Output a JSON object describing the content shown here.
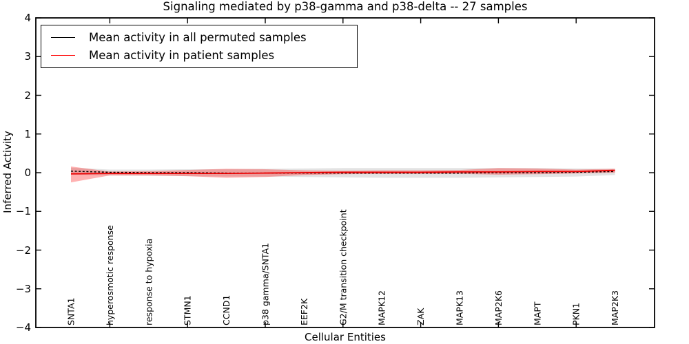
{
  "figure": {
    "title": "Signaling mediated by p38-gamma and p38-delta -- 27 samples",
    "xlabel": "Cellular Entities",
    "ylabel": "Inferred Activity",
    "background_color": "#ffffff",
    "frame_color": "#000000"
  },
  "legend": {
    "position": "upper left",
    "entries": [
      {
        "label": "Mean activity in all permuted samples",
        "color": "#000000",
        "line_style": "solid-sample"
      },
      {
        "label": "Mean activity in patient samples",
        "color": "#ff0000",
        "line_style": "solid-sample"
      }
    ]
  },
  "chart_data": {
    "type": "line",
    "title": "Signaling mediated by p38-gamma and p38-delta -- 27 samples",
    "xlabel": "Cellular Entities",
    "ylabel": "Inferred Activity",
    "ylim": [
      -4,
      4
    ],
    "yticks": [
      -4,
      -3,
      -2,
      -1,
      0,
      1,
      2,
      3,
      4
    ],
    "grid": false,
    "legend_position": "upper left",
    "categories": [
      "SNTA1",
      "hyperosmotic response",
      "response to hypoxia",
      "STMN1",
      "CCND1",
      "p38 gamma/SNTA1",
      "EEF2K",
      "G2/M transition checkpoint",
      "MAPK12",
      "ZAK",
      "MAPK13",
      "MAP2K6",
      "MAPT",
      "PKN1",
      "MAP2K3"
    ],
    "xtick_indices": [
      1,
      3,
      5,
      7,
      9,
      11,
      13
    ],
    "series": [
      {
        "name": "Mean activity in all permuted samples",
        "color": "#000000",
        "style": "dashed",
        "values": [
          0.04,
          0.01,
          0.0,
          0.0,
          -0.01,
          -0.01,
          -0.01,
          -0.01,
          -0.01,
          -0.01,
          -0.01,
          0.0,
          0.0,
          0.01,
          0.03
        ],
        "band_upper": [
          0.13,
          0.08,
          0.08,
          0.09,
          0.09,
          0.1,
          0.11,
          0.12,
          0.12,
          0.12,
          0.12,
          0.12,
          0.12,
          0.11,
          0.1
        ],
        "band_lower": [
          -0.05,
          -0.07,
          -0.08,
          -0.09,
          -0.1,
          -0.1,
          -0.11,
          -0.12,
          -0.13,
          -0.13,
          -0.13,
          -0.12,
          -0.11,
          -0.1,
          -0.06
        ],
        "band_color": "#999999",
        "band_opacity": 0.28
      },
      {
        "name": "Mean activity in patient samples",
        "color": "#ee0000",
        "style": "solid",
        "values": [
          -0.03,
          -0.02,
          -0.02,
          -0.02,
          -0.02,
          -0.01,
          0.0,
          0.01,
          0.01,
          0.01,
          0.02,
          0.02,
          0.03,
          0.03,
          0.06
        ],
        "band_upper": [
          0.16,
          0.03,
          0.04,
          0.07,
          0.1,
          0.09,
          0.06,
          0.05,
          0.06,
          0.06,
          0.07,
          0.12,
          0.11,
          0.08,
          0.1
        ],
        "band_lower": [
          -0.25,
          -0.07,
          -0.07,
          -0.09,
          -0.13,
          -0.11,
          -0.06,
          -0.04,
          -0.03,
          -0.03,
          -0.03,
          -0.05,
          -0.04,
          -0.02,
          0.0
        ],
        "band_color": "#ff0000",
        "band_opacity": 0.3
      }
    ]
  }
}
